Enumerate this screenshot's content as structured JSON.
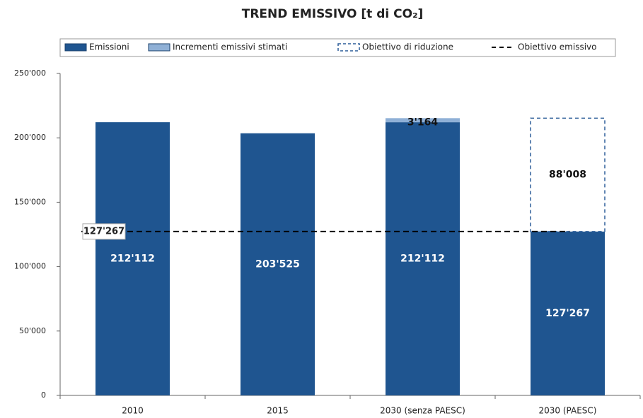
{
  "chart_data": {
    "type": "bar",
    "stacked": true,
    "title": "TREND EMISSIVO [t di CO₂]",
    "categories": [
      "2010",
      "2015",
      "2030 (senza PAESC)",
      "2030 (PAESC)"
    ],
    "series": [
      {
        "name": "Emissioni",
        "color": "#1f5590",
        "style": "solid",
        "values": [
          212112,
          203525,
          212112,
          127267
        ],
        "value_labels": [
          "212'112",
          "203'525",
          "212'112",
          "127'267"
        ]
      },
      {
        "name": "Incrementi emissivi stimati",
        "color": "#8fb0d6",
        "style": "solid",
        "values": [
          null,
          null,
          3164,
          null
        ],
        "value_labels": [
          null,
          null,
          "3'164",
          null
        ]
      },
      {
        "name": "Obiettivo di riduzione",
        "color": "#2f5f9a",
        "style": "dashed",
        "values": [
          null,
          null,
          null,
          88008
        ],
        "value_labels": [
          null,
          null,
          null,
          "88'008"
        ]
      }
    ],
    "threshold": {
      "name": "Obiettivo emissivo",
      "value": 127267,
      "label": "127'267",
      "color": "#000000"
    },
    "ylim": [
      0,
      250000
    ],
    "yticks": [
      0,
      {
        "value": 50000,
        "label": "50'000"
      },
      {
        "value": 100000,
        "label": "100'000"
      },
      {
        "value": 150000,
        "label": "150'000"
      },
      {
        "value": 200000,
        "label": "200'000"
      },
      {
        "value": 250000,
        "label": "250'000"
      }
    ],
    "legend": "top"
  }
}
